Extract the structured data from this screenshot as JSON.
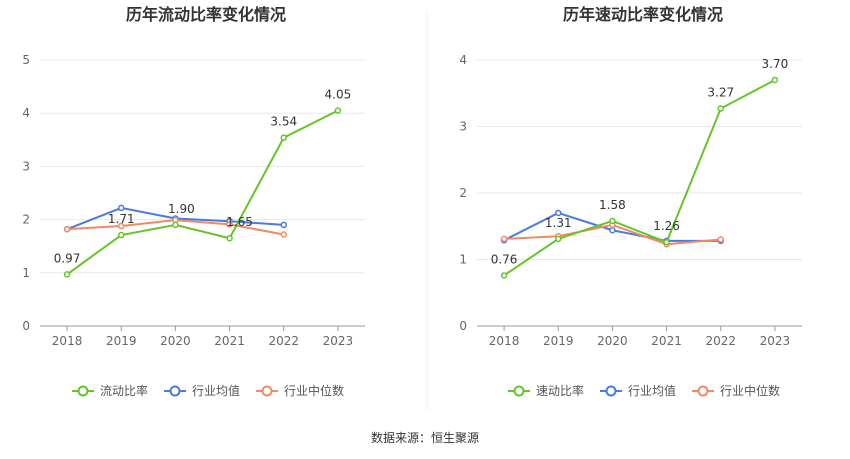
{
  "source": "数据来源：恒生聚源",
  "colors": {
    "primary": "#66c42b",
    "industry_avg": "#4a79e0",
    "industry_median": "#f08a64",
    "grid": "#e8e8e8",
    "axis": "#999999"
  },
  "chart_data": [
    {
      "type": "line",
      "title": "历年流动比率变化情况",
      "categories": [
        "2018",
        "2019",
        "2020",
        "2021",
        "2022",
        "2023"
      ],
      "ylim": [
        0,
        5
      ],
      "yticks": [
        0,
        1,
        2,
        3,
        4,
        5
      ],
      "legend_position": "bottom",
      "grid": true,
      "series": [
        {
          "name": "流动比率",
          "color": "#66c42b",
          "values": [
            0.97,
            1.71,
            1.9,
            1.65,
            3.54,
            4.05
          ],
          "labels": [
            "0.97",
            "1.71",
            "1.90",
            "1.65",
            "3.54",
            "4.05"
          ]
        },
        {
          "name": "行业均值",
          "color": "#4a79e0",
          "values": [
            1.82,
            2.22,
            2.02,
            1.97,
            1.9,
            null
          ]
        },
        {
          "name": "行业中位数",
          "color": "#f08a64",
          "values": [
            1.82,
            1.88,
            1.99,
            1.91,
            1.72,
            null
          ]
        }
      ]
    },
    {
      "type": "line",
      "title": "历年速动比率变化情况",
      "categories": [
        "2018",
        "2019",
        "2020",
        "2021",
        "2022",
        "2023"
      ],
      "ylim": [
        0,
        4
      ],
      "yticks": [
        0,
        1,
        2,
        3,
        4
      ],
      "legend_position": "bottom",
      "grid": true,
      "series": [
        {
          "name": "速动比率",
          "color": "#66c42b",
          "values": [
            0.76,
            1.31,
            1.58,
            1.26,
            3.27,
            3.7
          ],
          "labels": [
            "0.76",
            "1.31",
            "1.58",
            "1.26",
            "3.27",
            "3.70"
          ]
        },
        {
          "name": "行业均值",
          "color": "#4a79e0",
          "values": [
            1.29,
            1.7,
            1.44,
            1.28,
            1.28,
            null
          ]
        },
        {
          "name": "行业中位数",
          "color": "#f08a64",
          "values": [
            1.31,
            1.35,
            1.52,
            1.23,
            1.3,
            null
          ]
        }
      ]
    }
  ]
}
